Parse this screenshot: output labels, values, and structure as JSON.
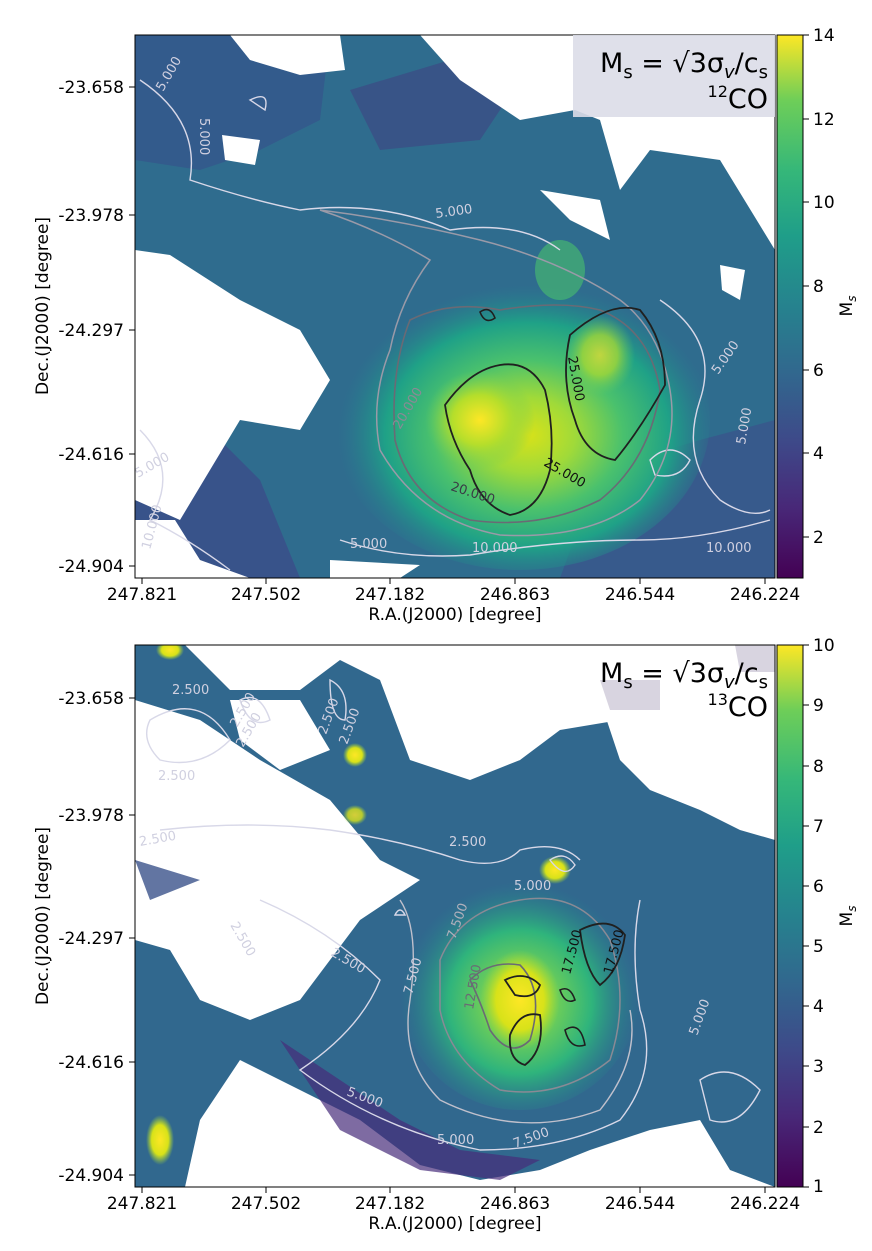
{
  "chart_data": [
    {
      "type": "heatmap",
      "panel": "12CO",
      "annotation": {
        "formula": "M",
        "formula_sub": "s",
        "formula_rest": " = √3σ",
        "formula_v": "v",
        "formula_tail": "/c",
        "formula_sub2": "s",
        "tracer_sup": "12",
        "tracer": "CO"
      },
      "xlabel": "R.A.(J2000) [degree]",
      "ylabel": "Dec.(J2000) [degree]",
      "x_ticks": [
        "247.821",
        "247.502",
        "247.182",
        "246.863",
        "246.544",
        "246.224"
      ],
      "y_ticks": [
        "-23.658",
        "-23.978",
        "-24.297",
        "-24.616",
        "-24.904"
      ],
      "colorbar": {
        "label": "M",
        "label_sub": "s",
        "min": 1,
        "max": 14,
        "ticks": [
          "2",
          "4",
          "6",
          "8",
          "10",
          "12",
          "14"
        ]
      },
      "contour_labels": [
        "5.000",
        "5.000",
        "5.000",
        "5.000",
        "5.000",
        "5.000",
        "5.000",
        "10.000",
        "10.000",
        "10.000",
        "20.000",
        "20.000",
        "25.000",
        "25.000"
      ],
      "colormap": "viridis"
    },
    {
      "type": "heatmap",
      "panel": "13CO",
      "annotation": {
        "formula": "M",
        "formula_sub": "s",
        "formula_rest": " = √3σ",
        "formula_v": "v",
        "formula_tail": "/c",
        "formula_sub2": "s",
        "tracer_sup": "13",
        "tracer": "CO"
      },
      "xlabel": "R.A.(J2000) [degree]",
      "ylabel": "Dec.(J2000) [degree]",
      "x_ticks": [
        "247.821",
        "247.502",
        "247.182",
        "246.863",
        "246.544",
        "246.224"
      ],
      "y_ticks": [
        "-23.658",
        "-23.978",
        "-24.297",
        "-24.616",
        "-24.904"
      ],
      "colorbar": {
        "label": "M",
        "label_sub": "s",
        "min": 1,
        "max": 10,
        "ticks": [
          "1",
          "2",
          "3",
          "4",
          "5",
          "6",
          "7",
          "8",
          "9",
          "10"
        ]
      },
      "contour_labels": [
        "2.500",
        "2.500",
        "2.500",
        "2.500",
        "2.500",
        "2.500",
        "2.500",
        "2.500",
        "2.500",
        "2.500",
        "5.000",
        "5.000",
        "5.000",
        "5.000",
        "7.500",
        "7.500",
        "7.500",
        "12.500",
        "17.500",
        "17.500"
      ],
      "colormap": "viridis"
    }
  ]
}
